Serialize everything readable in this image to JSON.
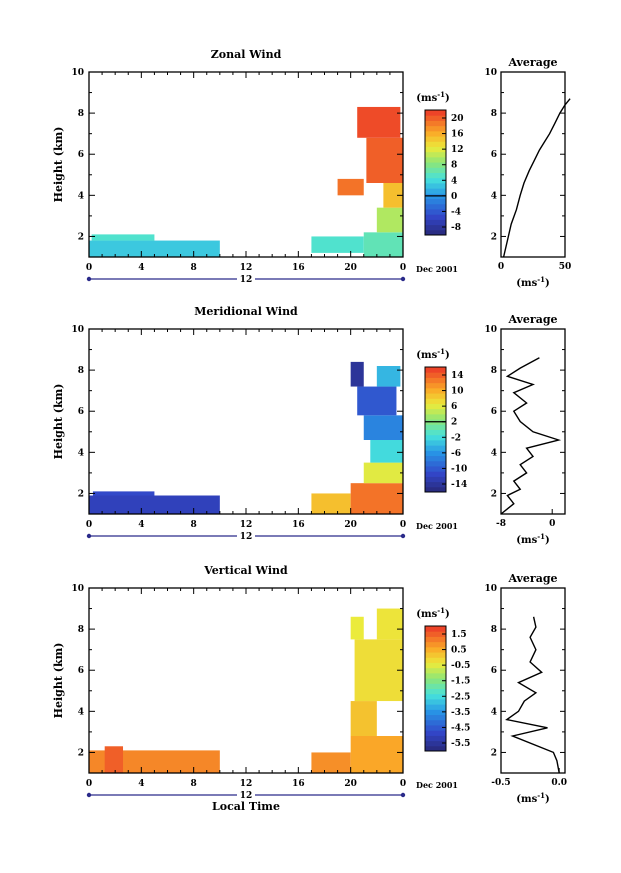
{
  "chart_data": [
    {
      "type": "heatmap",
      "title": "Zonal Wind",
      "ylabel": "Height (km)",
      "xlabel": "",
      "xlim": [
        0,
        24
      ],
      "ylim": [
        1,
        10
      ],
      "xticks": [
        "0",
        "4",
        "8",
        "12",
        "16",
        "20",
        "0"
      ],
      "yticks": [
        "2",
        "4",
        "6",
        "8",
        "10"
      ],
      "day_label": "12",
      "date_label": "Dec 2001",
      "colorbar": {
        "unit_prefix": "(ms",
        "unit_exp": "-1",
        "unit_suffix": ")",
        "ticks": [
          "20",
          "16",
          "12",
          "8",
          "4",
          "0",
          "-4",
          "-8"
        ],
        "range": [
          -10,
          22
        ],
        "zero_line": 0
      },
      "cells": [
        {
          "t0": 0,
          "t1": 10,
          "h0": 1.0,
          "h1": 1.8,
          "v": 3
        },
        {
          "t0": 0.2,
          "t1": 5,
          "h0": 1.8,
          "h1": 2.1,
          "v": 5
        },
        {
          "t0": 17,
          "t1": 21,
          "h0": 1.2,
          "h1": 2.0,
          "v": 5
        },
        {
          "t0": 21,
          "t1": 24,
          "h0": 1.0,
          "h1": 2.2,
          "v": 6
        },
        {
          "t0": 22,
          "t1": 24,
          "h0": 2.2,
          "h1": 3.4,
          "v": 10
        },
        {
          "t0": 22.5,
          "t1": 24,
          "h0": 3.4,
          "h1": 4.6,
          "v": 15
        },
        {
          "t0": 21.2,
          "t1": 24,
          "h0": 4.6,
          "h1": 6.8,
          "v": 20
        },
        {
          "t0": 20.5,
          "t1": 23.8,
          "h0": 6.8,
          "h1": 8.3,
          "v": 21
        },
        {
          "t0": 19,
          "t1": 21,
          "h0": 4.0,
          "h1": 4.8,
          "v": 19
        }
      ],
      "average_profile": {
        "title": "Average",
        "xlim": [
          0,
          50
        ],
        "xticks": [
          "0",
          "50"
        ],
        "unit_prefix": "(ms",
        "unit_exp": "-1",
        "unit_suffix": ")",
        "x": [
          2,
          5,
          8,
          12,
          15,
          18,
          22,
          26,
          30,
          34,
          38,
          42,
          46,
          50,
          54
        ],
        "y": [
          1.0,
          1.8,
          2.6,
          3.3,
          4.0,
          4.6,
          5.2,
          5.7,
          6.2,
          6.6,
          7.0,
          7.5,
          8.0,
          8.4,
          8.7
        ]
      }
    },
    {
      "type": "heatmap",
      "title": "Meridional Wind",
      "ylabel": "Height (km)",
      "xlabel": "",
      "xlim": [
        0,
        24
      ],
      "ylim": [
        1,
        10
      ],
      "xticks": [
        "0",
        "4",
        "8",
        "12",
        "16",
        "20",
        "0"
      ],
      "yticks": [
        "2",
        "4",
        "6",
        "8",
        "10"
      ],
      "day_label": "12",
      "date_label": "Dec 2001",
      "colorbar": {
        "unit_prefix": "(ms",
        "unit_exp": "-1",
        "unit_suffix": ")",
        "ticks": [
          "14",
          "10",
          "6",
          "2",
          "-2",
          "-6",
          "-10",
          "-14"
        ],
        "range": [
          -16,
          16
        ],
        "zero_line": 2
      },
      "cells": [
        {
          "t0": 0,
          "t1": 10,
          "h0": 1.0,
          "h1": 1.9,
          "v": -12
        },
        {
          "t0": 0.3,
          "t1": 5,
          "h0": 1.9,
          "h1": 2.1,
          "v": -11
        },
        {
          "t0": 17,
          "t1": 20,
          "h0": 1.0,
          "h1": 2.0,
          "v": 9
        },
        {
          "t0": 20,
          "t1": 24,
          "h0": 1.0,
          "h1": 2.5,
          "v": 13
        },
        {
          "t0": 21,
          "t1": 24,
          "h0": 2.5,
          "h1": 3.5,
          "v": 6
        },
        {
          "t0": 21.5,
          "t1": 24,
          "h0": 3.5,
          "h1": 4.6,
          "v": -2
        },
        {
          "t0": 21,
          "t1": 24,
          "h0": 4.6,
          "h1": 5.8,
          "v": -7
        },
        {
          "t0": 20.5,
          "t1": 23.5,
          "h0": 5.8,
          "h1": 7.2,
          "v": -10
        },
        {
          "t0": 20,
          "t1": 21,
          "h0": 7.2,
          "h1": 8.4,
          "v": -14
        },
        {
          "t0": 22,
          "t1": 23.8,
          "h0": 7.2,
          "h1": 8.2,
          "v": -4
        }
      ],
      "average_profile": {
        "title": "Average",
        "xlim": [
          -8,
          2
        ],
        "xticks": [
          "-8",
          "0"
        ],
        "unit_prefix": "(ms",
        "unit_exp": "-1",
        "unit_suffix": ")",
        "x": [
          -8,
          -6,
          -7,
          -5,
          -6,
          -4,
          -5,
          -3,
          -4,
          1,
          -3,
          -5,
          -6,
          -4,
          -6,
          -3,
          -7,
          -5,
          -2
        ],
        "y": [
          1.0,
          1.5,
          1.9,
          2.2,
          2.6,
          3.0,
          3.4,
          3.8,
          4.2,
          4.6,
          5.0,
          5.5,
          6.0,
          6.4,
          6.9,
          7.3,
          7.7,
          8.1,
          8.6
        ]
      }
    },
    {
      "type": "heatmap",
      "title": "Vertical Wind",
      "ylabel": "Height (km)",
      "xlabel": "Local Time",
      "xlim": [
        0,
        24
      ],
      "ylim": [
        1,
        10
      ],
      "xticks": [
        "0",
        "4",
        "8",
        "12",
        "16",
        "20",
        "0"
      ],
      "yticks": [
        "2",
        "4",
        "6",
        "8",
        "10"
      ],
      "day_label": "12",
      "date_label": "Dec 2001",
      "colorbar": {
        "unit_prefix": "(ms",
        "unit_exp": "-1",
        "unit_suffix": ")",
        "ticks": [
          "1.5",
          "0.5",
          "-0.5",
          "-1.5",
          "-2.5",
          "-3.5",
          "-4.5",
          "-5.5"
        ],
        "range": [
          -6.0,
          2.0
        ],
        "zero_line": null
      },
      "cells": [
        {
          "t0": 0,
          "t1": 10,
          "h0": 1.0,
          "h1": 2.1,
          "v": 1.0
        },
        {
          "t0": 1.2,
          "t1": 2.6,
          "h0": 1.0,
          "h1": 2.3,
          "v": 1.5
        },
        {
          "t0": 17,
          "t1": 20,
          "h0": 1.0,
          "h1": 2.0,
          "v": 0.9
        },
        {
          "t0": 20,
          "t1": 24,
          "h0": 1.0,
          "h1": 2.8,
          "v": 0.6
        },
        {
          "t0": 20,
          "t1": 22,
          "h0": 2.8,
          "h1": 4.5,
          "v": 0.2
        },
        {
          "t0": 20.3,
          "t1": 24,
          "h0": 4.5,
          "h1": 7.5,
          "v": -0.2
        },
        {
          "t0": 22,
          "t1": 24,
          "h0": 7.5,
          "h1": 9.0,
          "v": -0.3
        },
        {
          "t0": 20,
          "t1": 21,
          "h0": 7.5,
          "h1": 8.6,
          "v": -0.4
        }
      ],
      "average_profile": {
        "title": "Average",
        "xlim": [
          -0.5,
          0.05
        ],
        "xticks": [
          "-0.5",
          "0.0"
        ],
        "unit_prefix": "(ms",
        "unit_exp": "-1",
        "unit_suffix": ")",
        "x": [
          0.0,
          -0.02,
          -0.05,
          -0.4,
          -0.1,
          -0.45,
          -0.35,
          -0.3,
          -0.2,
          -0.35,
          -0.15,
          -0.25,
          -0.2,
          -0.25,
          -0.2,
          -0.22
        ],
        "y": [
          1.0,
          1.6,
          2.0,
          2.8,
          3.2,
          3.6,
          4.0,
          4.5,
          4.9,
          5.4,
          5.9,
          6.4,
          7.0,
          7.6,
          8.1,
          8.6
        ]
      }
    }
  ]
}
